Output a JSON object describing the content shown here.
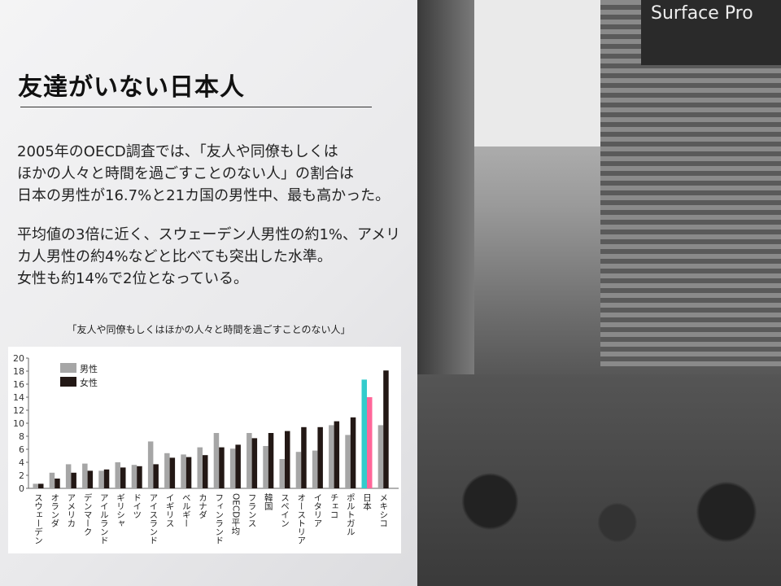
{
  "slide": {
    "title": "友達がいない日本人",
    "paragraph1": "2005年のOECD調査では、「友人や同僚もしくは\nほかの人々と時間を過ごすことのない人」の割合は\n日本の男性が16.7%と21カ国の男性中、最も高かった。",
    "paragraph2": "平均値の3倍に近く、スウェーデン人男性の約1%、アメリ\nカ人男性の約4%などと比べても突出した水準。\n女性も約14%で2位となっている。",
    "chart_caption": "「友人や同僚もしくはほかの人々と時間を過ごすことのない人」"
  },
  "photo": {
    "sign_text": "Surface Pro"
  },
  "chart_data": {
    "type": "bar",
    "title": "「友人や同僚もしくはほかの人々と時間を過ごすことのない人」",
    "ylim": [
      0,
      20
    ],
    "yticks": [
      "0",
      "2",
      "4",
      "6",
      "8",
      "10",
      "12",
      "14",
      "16",
      "18",
      "20"
    ],
    "legend_position": "top-left",
    "categories": [
      "スウェーデン",
      "オランダ",
      "アメリカ",
      "デンマーク",
      "アイルランド",
      "ギリシャ",
      "ドイツ",
      "アイスランド",
      "イギリス",
      "ベルギー",
      "カナダ",
      "フィンランド",
      "OECD平均",
      "フランス",
      "韓国",
      "スペイン",
      "オーストリア",
      "イタリア",
      "チェコ",
      "ポルトガル",
      "日本",
      "メキシコ"
    ],
    "series": [
      {
        "name": "男性",
        "color": "#a6a6a6",
        "highlight_color": "#33cccc",
        "values": [
          0.7,
          2.4,
          3.7,
          3.8,
          2.7,
          4.0,
          3.6,
          7.2,
          5.4,
          5.2,
          6.3,
          8.5,
          6.1,
          8.5,
          6.5,
          4.5,
          5.6,
          5.8,
          9.7,
          8.2,
          16.7,
          9.7
        ]
      },
      {
        "name": "女性",
        "color": "#231815",
        "highlight_color": "#ff6699",
        "values": [
          0.7,
          1.5,
          2.4,
          2.7,
          2.9,
          3.2,
          3.4,
          3.7,
          4.7,
          4.8,
          5.1,
          6.3,
          6.7,
          7.7,
          8.5,
          8.8,
          9.4,
          9.4,
          10.3,
          10.9,
          14.0,
          18.1
        ]
      }
    ],
    "highlight_category": "日本"
  }
}
